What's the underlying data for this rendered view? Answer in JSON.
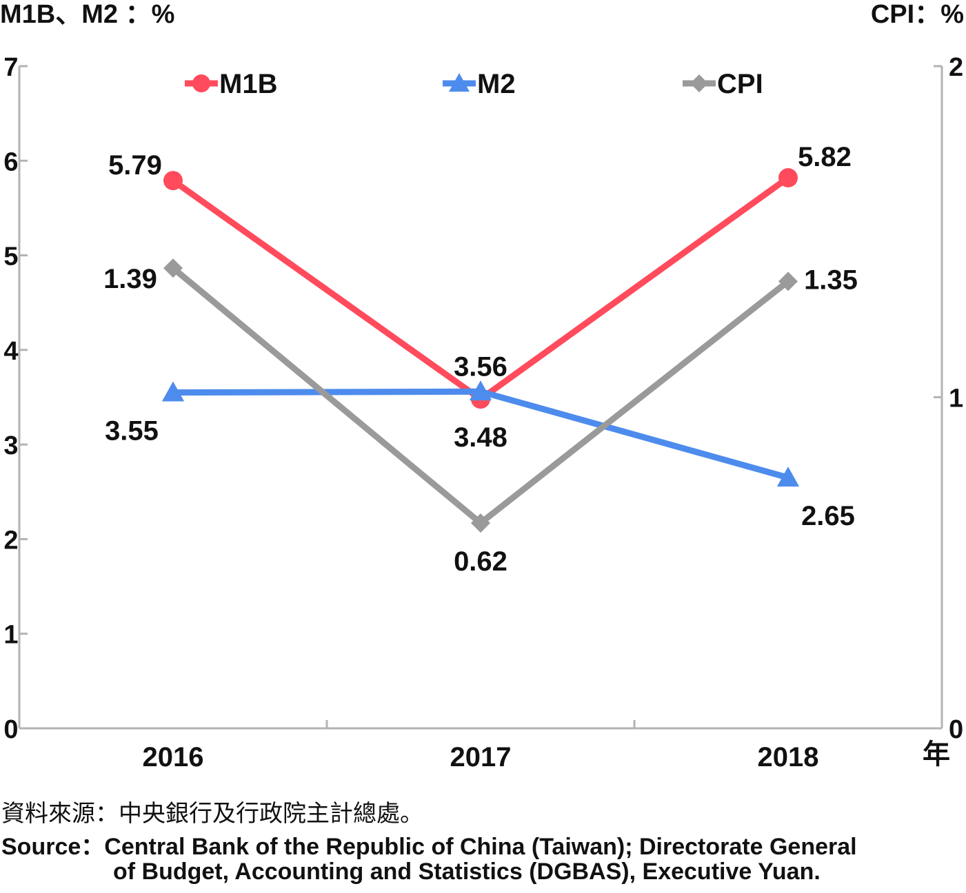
{
  "chart_data": {
    "type": "line",
    "left_axis_title": "M1B、M2 ：%",
    "right_axis_title": "CPI：%",
    "x_unit_label": "年",
    "categories": [
      "2016",
      "2017",
      "2018"
    ],
    "left_ylim": [
      0,
      7
    ],
    "left_ticks": [
      "0",
      "1",
      "2",
      "3",
      "4",
      "5",
      "6",
      "7"
    ],
    "right_ylim": [
      0,
      2
    ],
    "right_ticks": [
      "0",
      "1",
      "2"
    ],
    "legend_position": "top",
    "series": [
      {
        "name": "M1B",
        "axis": "left",
        "marker": "circle",
        "color": "#ff4b5c",
        "values": [
          5.79,
          3.48,
          5.82
        ],
        "labels": [
          "5.79",
          "3.48",
          "5.82"
        ]
      },
      {
        "name": "M2",
        "axis": "left",
        "marker": "triangle",
        "color": "#4d8ced",
        "values": [
          3.55,
          3.56,
          2.65
        ],
        "labels": [
          "3.55",
          "3.56",
          "2.65"
        ]
      },
      {
        "name": "CPI",
        "axis": "right",
        "marker": "diamond",
        "color": "#9a9a9a",
        "values": [
          1.39,
          0.62,
          1.35
        ],
        "labels": [
          "1.39",
          "0.62",
          "1.35"
        ]
      }
    ]
  },
  "source": {
    "zh": "資料來源：中央銀行及行政院主計總處。",
    "en_line1": "Source：Central Bank of the Republic of China (Taiwan); Directorate General",
    "en_line2": "of Budget, Accounting and Statistics (DGBAS), Executive Yuan."
  }
}
